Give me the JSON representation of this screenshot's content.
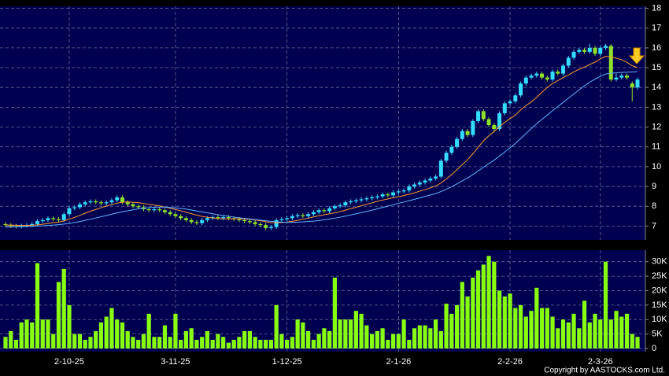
{
  "chart_data": {
    "type": "candlestick",
    "categories": [
      null,
      null,
      null,
      null,
      null,
      null,
      null,
      null,
      null,
      null,
      null,
      null,
      "2-10-25",
      null,
      null,
      null,
      null,
      null,
      null,
      null,
      null,
      null,
      null,
      null,
      null,
      null,
      null,
      null,
      null,
      null,
      null,
      null,
      "3-11-25",
      null,
      null,
      null,
      null,
      null,
      null,
      null,
      null,
      null,
      null,
      null,
      null,
      null,
      null,
      null,
      null,
      null,
      null,
      null,
      null,
      "1-12-25",
      null,
      null,
      null,
      null,
      null,
      null,
      null,
      null,
      null,
      null,
      null,
      null,
      null,
      null,
      null,
      null,
      null,
      null,
      null,
      null,
      "2-1-26",
      null,
      null,
      null,
      null,
      null,
      null,
      null,
      null,
      null,
      null,
      null,
      null,
      null,
      null,
      null,
      null,
      null,
      null,
      null,
      null,
      "2-2-26",
      null,
      null,
      null,
      null,
      null,
      null,
      null,
      null,
      null,
      null,
      null,
      null,
      null,
      null,
      null,
      null,
      "2-3-26",
      null,
      null,
      null,
      null,
      null,
      null,
      null
    ],
    "open": [
      7.1,
      7.05,
      7.0,
      6.98,
      7.02,
      7.05,
      7.1,
      7.25,
      7.3,
      7.4,
      7.35,
      7.3,
      7.6,
      7.9,
      7.95,
      8.1,
      8.2,
      8.25,
      8.2,
      8.15,
      8.2,
      8.3,
      8.45,
      8.2,
      8.1,
      8.0,
      7.95,
      7.85,
      7.8,
      7.85,
      7.8,
      7.7,
      7.6,
      7.5,
      7.4,
      7.3,
      7.2,
      7.15,
      7.3,
      7.4,
      7.45,
      7.4,
      7.45,
      7.4,
      7.35,
      7.3,
      7.25,
      7.2,
      7.1,
      7.05,
      6.9,
      6.95,
      7.3,
      7.35,
      7.4,
      7.5,
      7.55,
      7.5,
      7.6,
      7.7,
      7.8,
      7.75,
      7.9,
      8.0,
      8.05,
      8.2,
      8.25,
      8.3,
      8.35,
      8.4,
      8.45,
      8.5,
      8.6,
      8.55,
      8.7,
      8.75,
      8.8,
      9.0,
      9.1,
      9.2,
      9.3,
      9.4,
      9.5,
      10.3,
      10.7,
      11.0,
      11.4,
      11.8,
      11.6,
      12.3,
      12.8,
      12.4,
      12.1,
      11.9,
      12.7,
      13.2,
      13.3,
      13.6,
      14.2,
      14.5,
      14.6,
      14.7,
      14.5,
      14.4,
      14.8,
      14.7,
      15.1,
      15.5,
      15.8,
      15.9,
      15.8,
      16.0,
      15.7,
      16.0,
      16.1,
      14.4,
      14.5,
      14.6,
      14.2,
      14.0
    ],
    "high": [
      7.2,
      7.15,
      7.1,
      7.12,
      7.15,
      7.2,
      7.35,
      7.4,
      7.5,
      7.5,
      7.45,
      7.7,
      8.0,
      8.05,
      8.2,
      8.3,
      8.35,
      8.35,
      8.3,
      8.3,
      8.4,
      8.55,
      8.55,
      8.3,
      8.2,
      8.1,
      8.05,
      7.95,
      7.95,
      7.95,
      7.9,
      7.8,
      7.7,
      7.6,
      7.5,
      7.4,
      7.3,
      7.4,
      7.5,
      7.55,
      7.55,
      7.55,
      7.55,
      7.5,
      7.45,
      7.4,
      7.35,
      7.3,
      7.2,
      7.15,
      7.05,
      7.4,
      7.45,
      7.5,
      7.6,
      7.65,
      7.65,
      7.7,
      7.8,
      7.9,
      7.9,
      8.0,
      8.1,
      8.15,
      8.3,
      8.35,
      8.4,
      8.45,
      8.5,
      8.55,
      8.6,
      8.7,
      8.7,
      8.8,
      8.85,
      8.9,
      9.1,
      9.2,
      9.3,
      9.4,
      9.5,
      9.6,
      10.4,
      10.8,
      11.1,
      11.5,
      11.9,
      11.9,
      12.4,
      12.9,
      12.9,
      12.5,
      12.2,
      12.8,
      13.3,
      13.4,
      13.7,
      14.3,
      14.6,
      14.7,
      14.8,
      14.8,
      14.6,
      14.9,
      14.9,
      15.2,
      15.6,
      15.9,
      16.0,
      16.0,
      16.2,
      16.1,
      16.1,
      16.2,
      16.2,
      14.7,
      14.7,
      14.7,
      14.3,
      14.5
    ],
    "low": [
      6.95,
      6.9,
      6.88,
      6.88,
      6.92,
      6.95,
      7.0,
      7.15,
      7.2,
      7.25,
      7.2,
      7.2,
      7.5,
      7.8,
      7.85,
      8.0,
      8.1,
      8.1,
      8.05,
      8.05,
      8.1,
      8.2,
      8.1,
      8.0,
      7.9,
      7.85,
      7.75,
      7.7,
      7.7,
      7.7,
      7.6,
      7.5,
      7.4,
      7.3,
      7.2,
      7.1,
      7.05,
      7.05,
      7.2,
      7.3,
      7.3,
      7.3,
      7.3,
      7.25,
      7.2,
      7.15,
      7.1,
      7.0,
      6.95,
      6.8,
      6.8,
      6.85,
      7.2,
      7.25,
      7.3,
      7.4,
      7.4,
      7.4,
      7.5,
      7.6,
      7.65,
      7.65,
      7.8,
      7.9,
      7.95,
      8.1,
      8.15,
      8.2,
      8.25,
      8.3,
      8.35,
      8.4,
      8.45,
      8.45,
      8.6,
      8.65,
      8.7,
      8.9,
      9.0,
      9.1,
      9.2,
      9.3,
      9.4,
      10.2,
      10.6,
      10.9,
      11.3,
      11.5,
      11.5,
      12.2,
      12.3,
      12.0,
      11.8,
      11.8,
      12.6,
      13.1,
      13.2,
      13.5,
      14.1,
      14.4,
      14.5,
      14.4,
      14.3,
      14.3,
      14.6,
      14.6,
      15.0,
      15.4,
      15.7,
      15.7,
      15.7,
      15.6,
      15.6,
      15.9,
      14.3,
      14.3,
      14.4,
      14.4,
      13.3,
      13.9
    ],
    "close": [
      7.05,
      7.0,
      6.98,
      7.02,
      7.05,
      7.1,
      7.25,
      7.3,
      7.4,
      7.35,
      7.3,
      7.6,
      7.9,
      7.95,
      8.1,
      8.2,
      8.25,
      8.2,
      8.15,
      8.2,
      8.3,
      8.45,
      8.2,
      8.1,
      8.0,
      7.95,
      7.85,
      7.8,
      7.85,
      7.8,
      7.7,
      7.6,
      7.5,
      7.4,
      7.3,
      7.2,
      7.15,
      7.3,
      7.4,
      7.45,
      7.4,
      7.45,
      7.4,
      7.35,
      7.3,
      7.25,
      7.2,
      7.1,
      7.05,
      6.9,
      6.95,
      7.3,
      7.35,
      7.4,
      7.5,
      7.55,
      7.5,
      7.6,
      7.7,
      7.8,
      7.75,
      7.9,
      8.0,
      8.05,
      8.2,
      8.25,
      8.3,
      8.35,
      8.4,
      8.45,
      8.5,
      8.6,
      8.55,
      8.7,
      8.75,
      8.8,
      9.0,
      9.1,
      9.2,
      9.3,
      9.4,
      9.5,
      10.3,
      10.7,
      11.0,
      11.4,
      11.8,
      11.6,
      12.3,
      12.8,
      12.4,
      12.1,
      11.9,
      12.7,
      13.2,
      13.3,
      13.6,
      14.2,
      14.5,
      14.6,
      14.7,
      14.5,
      14.4,
      14.8,
      14.7,
      15.1,
      15.5,
      15.8,
      15.9,
      15.8,
      16.0,
      15.7,
      16.0,
      16.1,
      14.4,
      14.5,
      14.6,
      14.5,
      14.0,
      14.4
    ],
    "up_color": "#33ddff",
    "down_color": "#8ee22a",
    "series": [
      {
        "color": "#ff9933",
        "values": [
          7.05,
          7.05,
          7.04,
          7.03,
          7.03,
          7.04,
          7.06,
          7.09,
          7.13,
          7.17,
          7.2,
          7.26,
          7.35,
          7.44,
          7.54,
          7.65,
          7.75,
          7.84,
          7.93,
          8.01,
          8.08,
          8.16,
          8.2,
          8.22,
          8.2,
          8.18,
          8.14,
          8.1,
          8.06,
          8.02,
          7.96,
          7.9,
          7.84,
          7.77,
          7.7,
          7.62,
          7.55,
          7.49,
          7.44,
          7.41,
          7.38,
          7.37,
          7.36,
          7.37,
          7.37,
          7.36,
          7.34,
          7.31,
          7.27,
          7.22,
          7.17,
          7.17,
          7.18,
          7.2,
          7.24,
          7.29,
          7.34,
          7.4,
          7.46,
          7.52,
          7.57,
          7.62,
          7.67,
          7.73,
          7.8,
          7.88,
          7.95,
          8.03,
          8.1,
          8.17,
          8.25,
          8.31,
          8.37,
          8.43,
          8.48,
          8.54,
          8.61,
          8.68,
          8.76,
          8.84,
          8.93,
          9.02,
          9.18,
          9.38,
          9.6,
          9.84,
          10.1,
          10.35,
          10.65,
          10.99,
          11.3,
          11.56,
          11.77,
          12.02,
          12.24,
          12.43,
          12.61,
          12.87,
          13.09,
          13.27,
          13.5,
          13.76,
          14.0,
          14.2,
          14.35,
          14.5,
          14.63,
          14.79,
          14.92,
          15.03,
          15.16,
          15.28,
          15.44,
          15.57,
          15.54,
          15.48,
          15.4,
          15.27,
          15.1,
          15.0
        ]
      },
      {
        "color": "#5fb4ff",
        "values": [
          6.95,
          6.96,
          6.97,
          6.97,
          6.98,
          6.99,
          7.0,
          7.01,
          7.03,
          7.05,
          7.07,
          7.1,
          7.14,
          7.18,
          7.23,
          7.29,
          7.35,
          7.41,
          7.47,
          7.53,
          7.6,
          7.66,
          7.72,
          7.77,
          7.82,
          7.87,
          7.9,
          7.93,
          7.95,
          7.96,
          7.96,
          7.94,
          7.92,
          7.89,
          7.86,
          7.81,
          7.76,
          7.72,
          7.67,
          7.62,
          7.57,
          7.53,
          7.49,
          7.45,
          7.42,
          7.39,
          7.36,
          7.33,
          7.3,
          7.27,
          7.24,
          7.22,
          7.2,
          7.19,
          7.19,
          7.2,
          7.21,
          7.23,
          7.25,
          7.28,
          7.32,
          7.36,
          7.4,
          7.45,
          7.5,
          7.56,
          7.62,
          7.68,
          7.74,
          7.8,
          7.87,
          7.94,
          8.01,
          8.08,
          8.15,
          8.21,
          8.28,
          8.35,
          8.42,
          8.5,
          8.57,
          8.64,
          8.74,
          8.86,
          8.99,
          9.13,
          9.28,
          9.43,
          9.6,
          9.79,
          9.97,
          10.15,
          10.33,
          10.53,
          10.74,
          10.95,
          11.17,
          11.42,
          11.67,
          11.92,
          12.16,
          12.39,
          12.6,
          12.83,
          13.04,
          13.25,
          13.46,
          13.67,
          13.88,
          14.08,
          14.27,
          14.42,
          14.56,
          14.68,
          14.72,
          14.74,
          14.76,
          14.77,
          14.78,
          14.8
        ]
      }
    ],
    "ylim": [
      6.3,
      18.1
    ],
    "yticks": [
      7,
      8,
      9,
      10,
      11,
      12,
      13,
      14,
      15,
      16,
      17,
      18
    ],
    "grid": true,
    "volume": {
      "color": "#88ff11",
      "values": [
        4000,
        6000,
        3000,
        9000,
        10000,
        9000,
        29500,
        10000,
        10000,
        5000,
        23000,
        27500,
        15000,
        5000,
        5000,
        3000,
        4000,
        6000,
        9000,
        11000,
        14000,
        10000,
        9000,
        6000,
        4000,
        3000,
        5000,
        12000,
        4000,
        4000,
        8000,
        4000,
        12000,
        3000,
        6000,
        7000,
        3000,
        4000,
        6000,
        3000,
        5000,
        4000,
        2000,
        3000,
        4000,
        6000,
        6000,
        4000,
        3000,
        3000,
        3000,
        15000,
        5000,
        3000,
        4000,
        10000,
        9000,
        6000,
        3000,
        5000,
        7000,
        6000,
        24500,
        10000,
        10000,
        10000,
        13000,
        12000,
        8000,
        5000,
        6000,
        7000,
        3000,
        5000,
        5000,
        10000,
        3000,
        7000,
        8000,
        8000,
        7000,
        10000,
        6000,
        15500,
        12000,
        15000,
        23000,
        18000,
        24500,
        27000,
        29000,
        32000,
        30000,
        20000,
        18000,
        19000,
        14000,
        15000,
        11000,
        13000,
        21000,
        14000,
        14000,
        11000,
        7000,
        10000,
        9000,
        12000,
        7000,
        16500,
        9000,
        12000,
        10000,
        30000,
        10000,
        13000,
        11000,
        12000,
        5000,
        4000
      ],
      "ylim": [
        0,
        34000
      ],
      "yticks": [
        0,
        {
          "value": 5000,
          "label": "5K"
        },
        {
          "value": 10000,
          "label": "10K"
        },
        {
          "value": 15000,
          "label": "15K"
        },
        {
          "value": 20000,
          "label": "20K"
        },
        {
          "value": 25000,
          "label": "25K"
        },
        {
          "value": 30000,
          "label": "30K"
        }
      ]
    }
  },
  "copyright": "Copyright by AASTOCKS.com Ltd."
}
